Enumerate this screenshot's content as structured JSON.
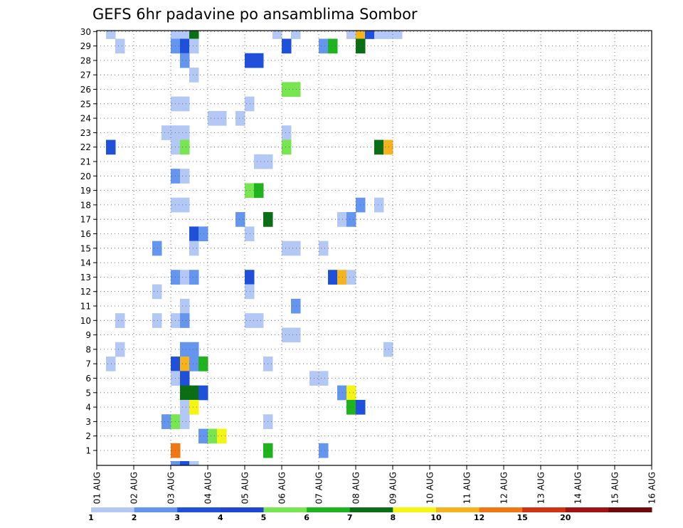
{
  "chart_data": {
    "type": "heatmap",
    "title": "GEFS 6hr padavine po ansamblima Sombor",
    "x_labels": [
      "01 AUG",
      "02 AUG",
      "03 AUG",
      "04 AUG",
      "05 AUG",
      "06 AUG",
      "07 AUG",
      "08 AUG",
      "09 AUG",
      "10 AUG",
      "11 AUG",
      "12 AUG",
      "13 AUG",
      "14 AUG",
      "15 AUG",
      "16 AUG"
    ],
    "y_labels": [
      "1",
      "2",
      "3",
      "4",
      "5",
      "6",
      "7",
      "8",
      "9",
      "10",
      "11",
      "12",
      "13",
      "14",
      "15",
      "16",
      "17",
      "18",
      "19",
      "20",
      "21",
      "22",
      "23",
      "24",
      "25",
      "26",
      "27",
      "28",
      "29",
      "30"
    ],
    "grid": true,
    "legend": {
      "position": "bottom",
      "labels": [
        "1",
        "2",
        "3",
        "4",
        "5",
        "6",
        "7",
        "8",
        "10",
        "12",
        "15",
        "20"
      ],
      "colors": [
        "#b4c8f5",
        "#6496f0",
        "#1e50dc",
        "#1e46d2",
        "#78e650",
        "#1eb41e",
        "#0a6e14",
        "#f5f514",
        "#f5b41e",
        "#f07814",
        "#d23214",
        "#a01414",
        "#6e0a0a"
      ]
    },
    "color_scale": {
      "c1": "#b4c8f5",
      "c2": "#6496f0",
      "c3": "#1e50dc",
      "c4": "#78e650",
      "c5": "#1eb41e",
      "c6": "#0a6e14",
      "c7": "#f5f514",
      "c8": "#f5b41e",
      "c10": "#f07814"
    },
    "cells_note": "[member, forecast step (6h steps from 01 AUG 00Z), class]",
    "cells": [
      [
        30,
        1,
        "c1"
      ],
      [
        30,
        8,
        "c1"
      ],
      [
        30,
        9,
        "c1"
      ],
      [
        30,
        10,
        "c6"
      ],
      [
        30,
        19,
        "c1"
      ],
      [
        30,
        21,
        "c1"
      ],
      [
        30,
        27,
        "c1"
      ],
      [
        30,
        28,
        "c8"
      ],
      [
        30,
        29,
        "c3"
      ],
      [
        30,
        30,
        "c1"
      ],
      [
        30,
        31,
        "c1"
      ],
      [
        30,
        32,
        "c1"
      ],
      [
        29,
        2,
        "c1"
      ],
      [
        29,
        8,
        "c2"
      ],
      [
        29,
        9,
        "c3"
      ],
      [
        29,
        10,
        "c1"
      ],
      [
        29,
        20,
        "c3"
      ],
      [
        29,
        24,
        "c2"
      ],
      [
        29,
        25,
        "c5"
      ],
      [
        29,
        28,
        "c6"
      ],
      [
        28,
        9,
        "c2"
      ],
      [
        28,
        16,
        "c3"
      ],
      [
        28,
        17,
        "c3"
      ],
      [
        27,
        10,
        "c1"
      ],
      [
        26,
        20,
        "c4"
      ],
      [
        26,
        21,
        "c4"
      ],
      [
        25,
        8,
        "c1"
      ],
      [
        25,
        9,
        "c1"
      ],
      [
        25,
        16,
        "c1"
      ],
      [
        24,
        12,
        "c1"
      ],
      [
        24,
        13,
        "c1"
      ],
      [
        24,
        15,
        "c1"
      ],
      [
        23,
        7,
        "c1"
      ],
      [
        23,
        8,
        "c1"
      ],
      [
        23,
        9,
        "c1"
      ],
      [
        23,
        20,
        "c1"
      ],
      [
        22,
        1,
        "c3"
      ],
      [
        22,
        8,
        "c1"
      ],
      [
        22,
        9,
        "c4"
      ],
      [
        22,
        20,
        "c4"
      ],
      [
        22,
        30,
        "c6"
      ],
      [
        22,
        31,
        "c8"
      ],
      [
        21,
        17,
        "c1"
      ],
      [
        21,
        18,
        "c1"
      ],
      [
        20,
        8,
        "c2"
      ],
      [
        20,
        9,
        "c1"
      ],
      [
        19,
        16,
        "c4"
      ],
      [
        19,
        17,
        "c5"
      ],
      [
        18,
        8,
        "c1"
      ],
      [
        18,
        9,
        "c1"
      ],
      [
        18,
        28,
        "c2"
      ],
      [
        18,
        30,
        "c1"
      ],
      [
        17,
        15,
        "c2"
      ],
      [
        17,
        18,
        "c6"
      ],
      [
        17,
        26,
        "c1"
      ],
      [
        17,
        27,
        "c2"
      ],
      [
        16,
        10,
        "c3"
      ],
      [
        16,
        11,
        "c2"
      ],
      [
        16,
        16,
        "c1"
      ],
      [
        15,
        6,
        "c2"
      ],
      [
        15,
        10,
        "c1"
      ],
      [
        15,
        20,
        "c1"
      ],
      [
        15,
        21,
        "c1"
      ],
      [
        15,
        24,
        "c1"
      ],
      [
        13,
        8,
        "c2"
      ],
      [
        13,
        9,
        "c1"
      ],
      [
        13,
        10,
        "c2"
      ],
      [
        13,
        16,
        "c3"
      ],
      [
        13,
        25,
        "c3"
      ],
      [
        13,
        26,
        "c8"
      ],
      [
        13,
        27,
        "c1"
      ],
      [
        12,
        6,
        "c1"
      ],
      [
        12,
        16,
        "c1"
      ],
      [
        11,
        9,
        "c1"
      ],
      [
        11,
        21,
        "c2"
      ],
      [
        10,
        2,
        "c1"
      ],
      [
        10,
        6,
        "c1"
      ],
      [
        10,
        8,
        "c1"
      ],
      [
        10,
        9,
        "c2"
      ],
      [
        10,
        16,
        "c1"
      ],
      [
        10,
        17,
        "c1"
      ],
      [
        9,
        20,
        "c1"
      ],
      [
        9,
        21,
        "c1"
      ],
      [
        8,
        2,
        "c1"
      ],
      [
        8,
        9,
        "c2"
      ],
      [
        8,
        10,
        "c2"
      ],
      [
        8,
        31,
        "c1"
      ],
      [
        7,
        1,
        "c1"
      ],
      [
        7,
        8,
        "c3"
      ],
      [
        7,
        9,
        "c8"
      ],
      [
        7,
        10,
        "c2"
      ],
      [
        7,
        11,
        "c5"
      ],
      [
        7,
        18,
        "c1"
      ],
      [
        6,
        8,
        "c1"
      ],
      [
        6,
        9,
        "c3"
      ],
      [
        6,
        23,
        "c1"
      ],
      [
        6,
        24,
        "c1"
      ],
      [
        5,
        9,
        "c6"
      ],
      [
        5,
        10,
        "c6"
      ],
      [
        5,
        11,
        "c3"
      ],
      [
        5,
        26,
        "c2"
      ],
      [
        5,
        27,
        "c7"
      ],
      [
        4,
        9,
        "c1"
      ],
      [
        4,
        10,
        "c7"
      ],
      [
        4,
        27,
        "c5"
      ],
      [
        4,
        28,
        "c3"
      ],
      [
        3,
        7,
        "c2"
      ],
      [
        3,
        8,
        "c4"
      ],
      [
        3,
        9,
        "c1"
      ],
      [
        3,
        18,
        "c1"
      ],
      [
        2,
        11,
        "c2"
      ],
      [
        2,
        12,
        "c4"
      ],
      [
        2,
        13,
        "c7"
      ],
      [
        1,
        8,
        "c10"
      ],
      [
        1,
        18,
        "c5"
      ],
      [
        1,
        24,
        "c2"
      ],
      [
        0,
        8,
        "c2"
      ],
      [
        0,
        9,
        "c3"
      ],
      [
        0,
        10,
        "c1"
      ]
    ]
  }
}
